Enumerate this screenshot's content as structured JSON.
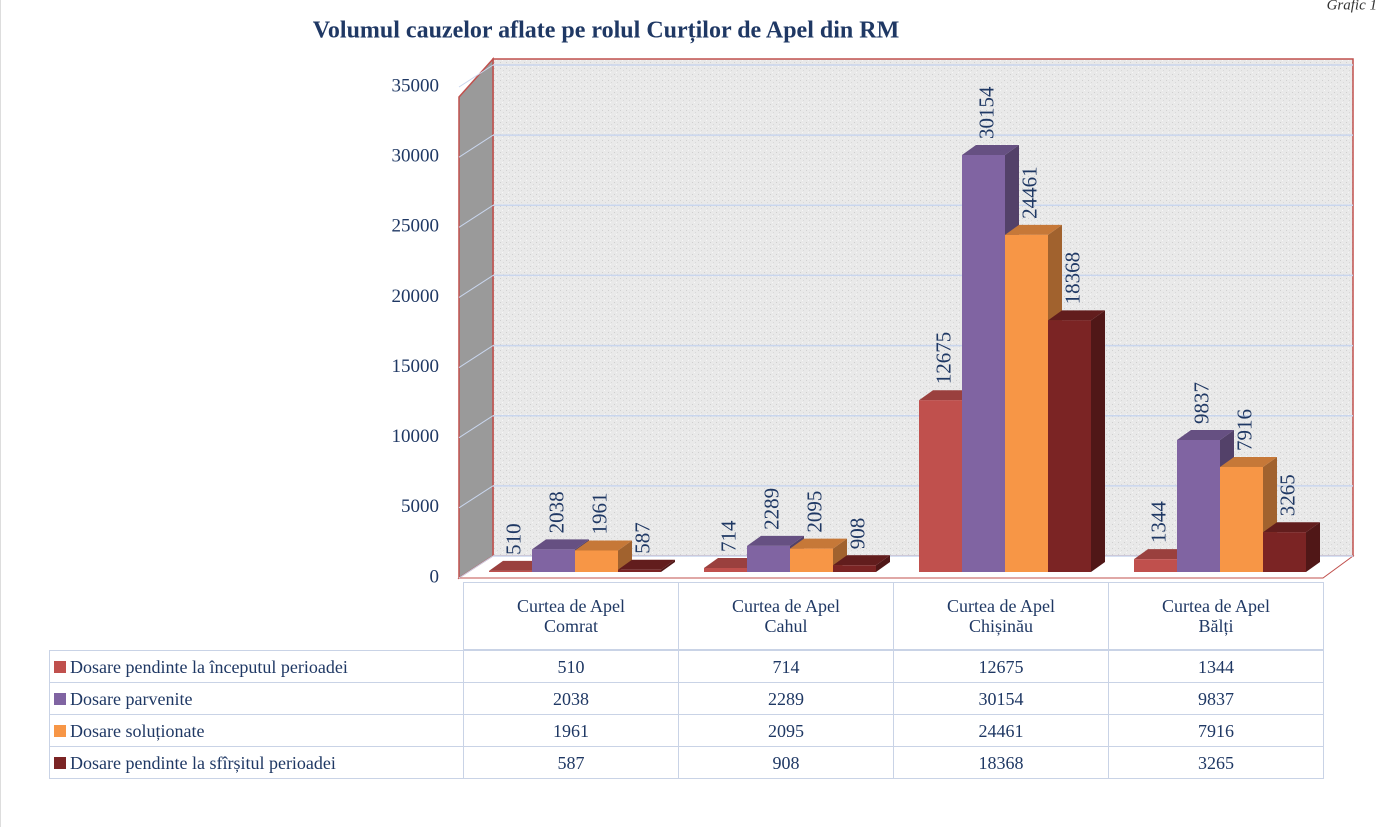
{
  "caption": "Grafic 1",
  "chart_data": {
    "type": "bar3d",
    "title": "Volumul cauzelor aflate pe rolul Curților de Apel din RM",
    "categories": [
      "Curtea de Apel Comrat",
      "Curtea de Apel Cahul",
      "Curtea de Apel Chișinău",
      "Curtea de Apel Bălți"
    ],
    "series": [
      {
        "name": "Dosare pendinte la începutul perioadei",
        "color": "#c0504d",
        "values": [
          510,
          714,
          12675,
          1344
        ]
      },
      {
        "name": "Dosare parvenite",
        "color": "#8064a2",
        "values": [
          2038,
          2289,
          30154,
          9837
        ]
      },
      {
        "name": "Dosare soluționate",
        "color": "#f79646",
        "values": [
          1961,
          2095,
          24461,
          7916
        ]
      },
      {
        "name": "Dosare pendinte la sfîrșitul perioadei",
        "color": "#7b2424",
        "values": [
          587,
          908,
          18368,
          3265
        ]
      }
    ],
    "ylim": [
      0,
      35000
    ],
    "yticks": [
      0,
      5000,
      10000,
      15000,
      20000,
      25000,
      30000,
      35000
    ],
    "grid": true,
    "data_table": true
  }
}
